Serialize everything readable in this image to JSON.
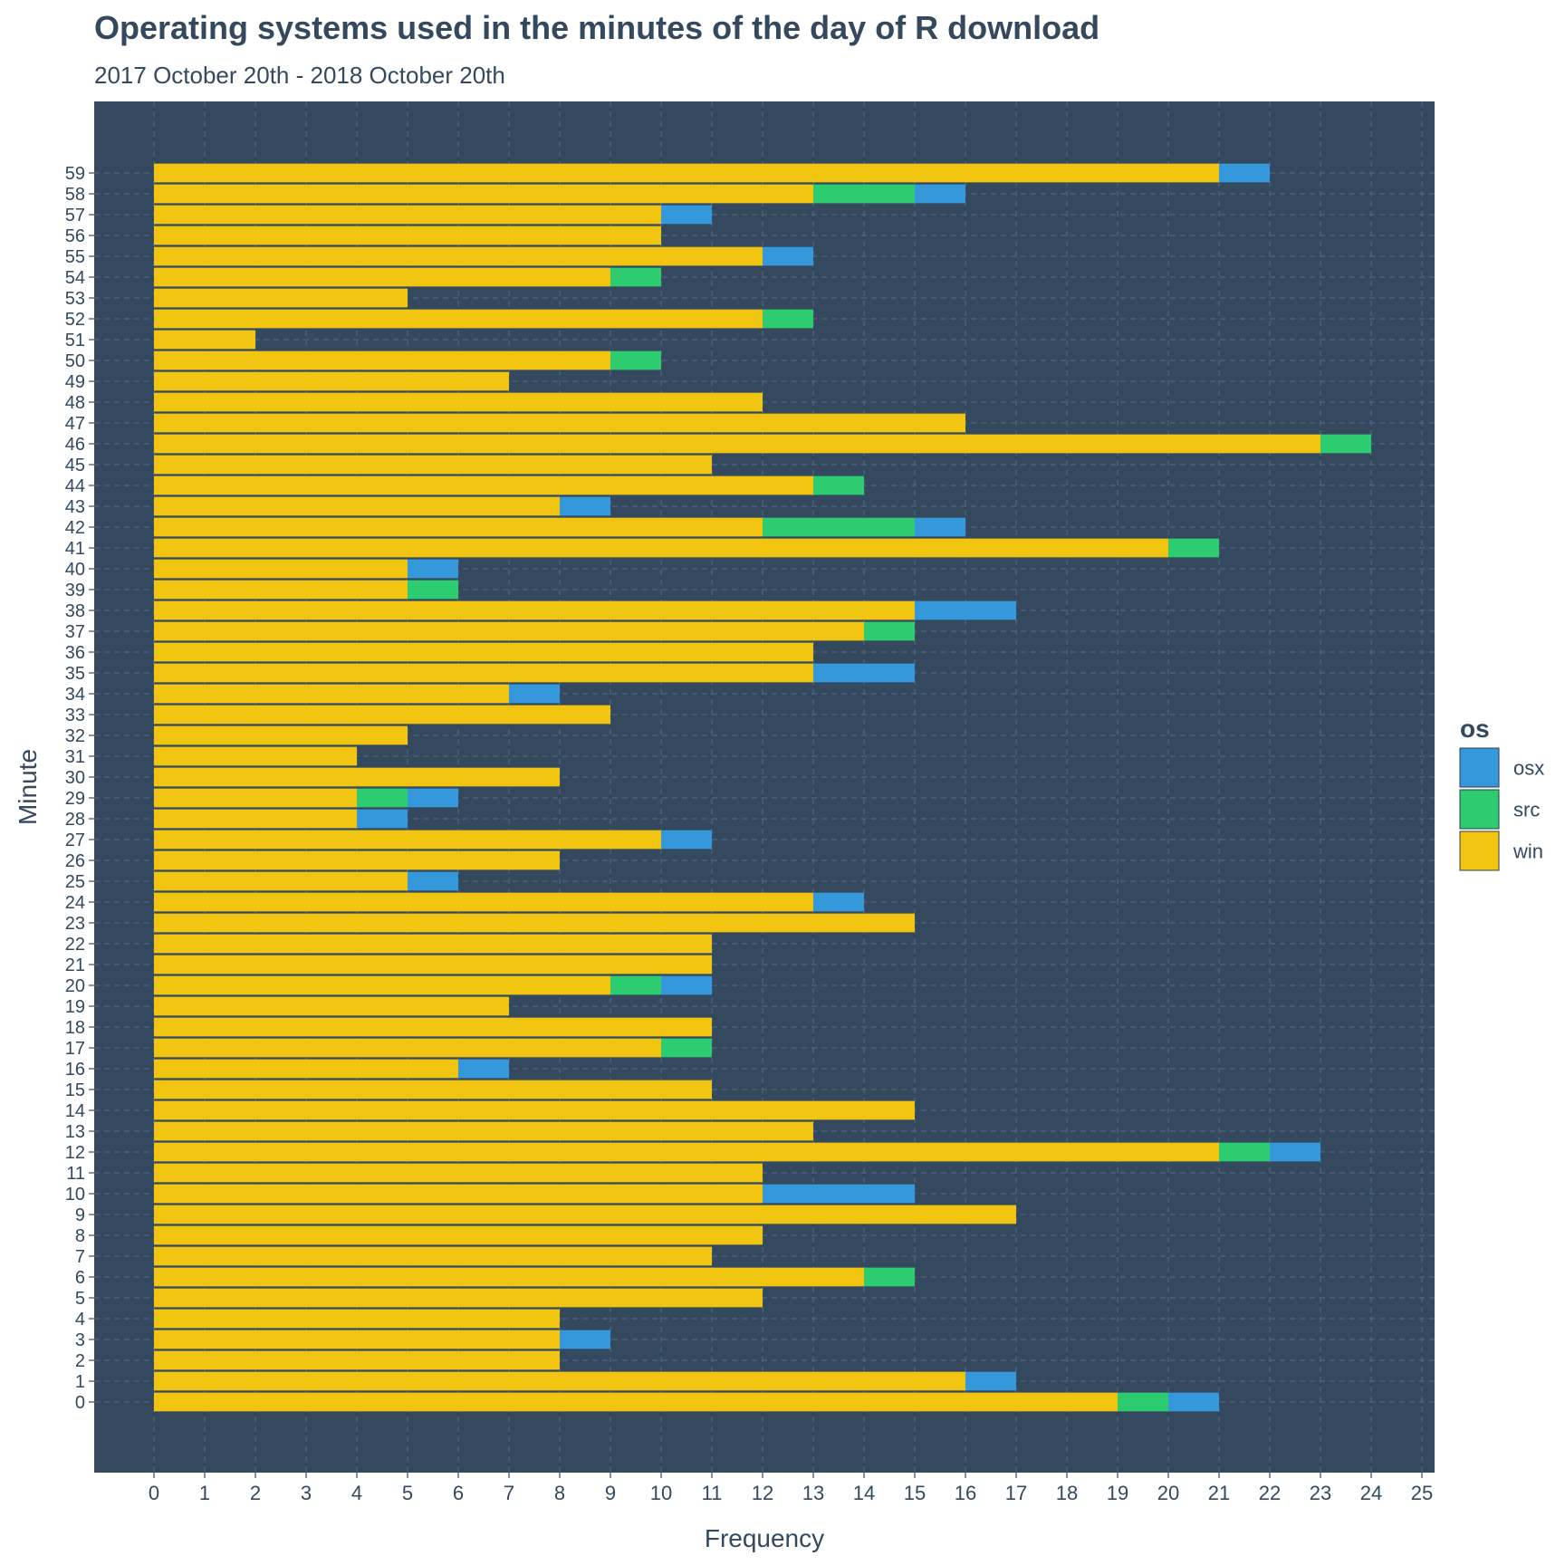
{
  "title": "Operating systems used in the minutes of the day of R download",
  "subtitle": "2017 October 20th - 2018 October 20th",
  "chart_data": {
    "type": "bar",
    "orientation": "horizontal",
    "stacked": true,
    "xlabel": "Frequency",
    "ylabel": "Minute",
    "xlim": [
      0,
      25
    ],
    "x_ticks": [
      0,
      1,
      2,
      3,
      4,
      5,
      6,
      7,
      8,
      9,
      10,
      11,
      12,
      13,
      14,
      15,
      16,
      17,
      18,
      19,
      20,
      21,
      22,
      23,
      24,
      25
    ],
    "grid": true,
    "legend": {
      "title": "os",
      "position": "right",
      "entries": [
        "osx",
        "src",
        "win"
      ]
    },
    "colors": {
      "osx": "#3498DB",
      "src": "#2ECC71",
      "win": "#F1C40F",
      "panel": "#34495E",
      "grid": "#4E6580",
      "text": "#34495E"
    },
    "categories": [
      "0",
      "1",
      "2",
      "3",
      "4",
      "5",
      "6",
      "7",
      "8",
      "9",
      "10",
      "11",
      "12",
      "13",
      "14",
      "15",
      "16",
      "17",
      "18",
      "19",
      "20",
      "21",
      "22",
      "23",
      "24",
      "25",
      "26",
      "27",
      "28",
      "29",
      "30",
      "31",
      "32",
      "33",
      "34",
      "35",
      "36",
      "37",
      "38",
      "39",
      "40",
      "41",
      "42",
      "43",
      "44",
      "45",
      "46",
      "47",
      "48",
      "49",
      "50",
      "51",
      "52",
      "53",
      "54",
      "55",
      "56",
      "57",
      "58",
      "59"
    ],
    "series": [
      {
        "name": "win",
        "values": [
          19,
          16,
          8,
          8,
          8,
          12,
          14,
          11,
          12,
          17,
          12,
          12,
          21,
          13,
          15,
          11,
          6,
          10,
          11,
          7,
          9,
          11,
          11,
          15,
          13,
          5,
          8,
          10,
          4,
          4,
          8,
          4,
          5,
          9,
          7,
          13,
          13,
          14,
          15,
          5,
          5,
          20,
          12,
          8,
          13,
          11,
          23,
          16,
          12,
          7,
          9,
          2,
          12,
          5,
          9,
          12,
          10,
          10,
          13,
          21
        ]
      },
      {
        "name": "src",
        "values": [
          1,
          0,
          0,
          0,
          0,
          0,
          1,
          0,
          0,
          0,
          0,
          0,
          1,
          0,
          0,
          0,
          0,
          1,
          0,
          0,
          1,
          0,
          0,
          0,
          0,
          0,
          0,
          0,
          0,
          1,
          0,
          0,
          0,
          0,
          0,
          0,
          0,
          1,
          0,
          1,
          0,
          1,
          3,
          0,
          1,
          0,
          1,
          0,
          0,
          0,
          1,
          0,
          1,
          0,
          1,
          0,
          0,
          0,
          2,
          0
        ]
      },
      {
        "name": "osx",
        "values": [
          1,
          1,
          0,
          1,
          0,
          0,
          0,
          0,
          0,
          0,
          3,
          0,
          1,
          0,
          0,
          0,
          1,
          0,
          0,
          0,
          1,
          0,
          0,
          0,
          1,
          1,
          0,
          1,
          1,
          1,
          0,
          0,
          0,
          0,
          1,
          2,
          0,
          0,
          2,
          0,
          1,
          0,
          1,
          1,
          0,
          0,
          0,
          0,
          0,
          0,
          0,
          0,
          0,
          0,
          0,
          1,
          0,
          1,
          1,
          1
        ]
      }
    ]
  }
}
